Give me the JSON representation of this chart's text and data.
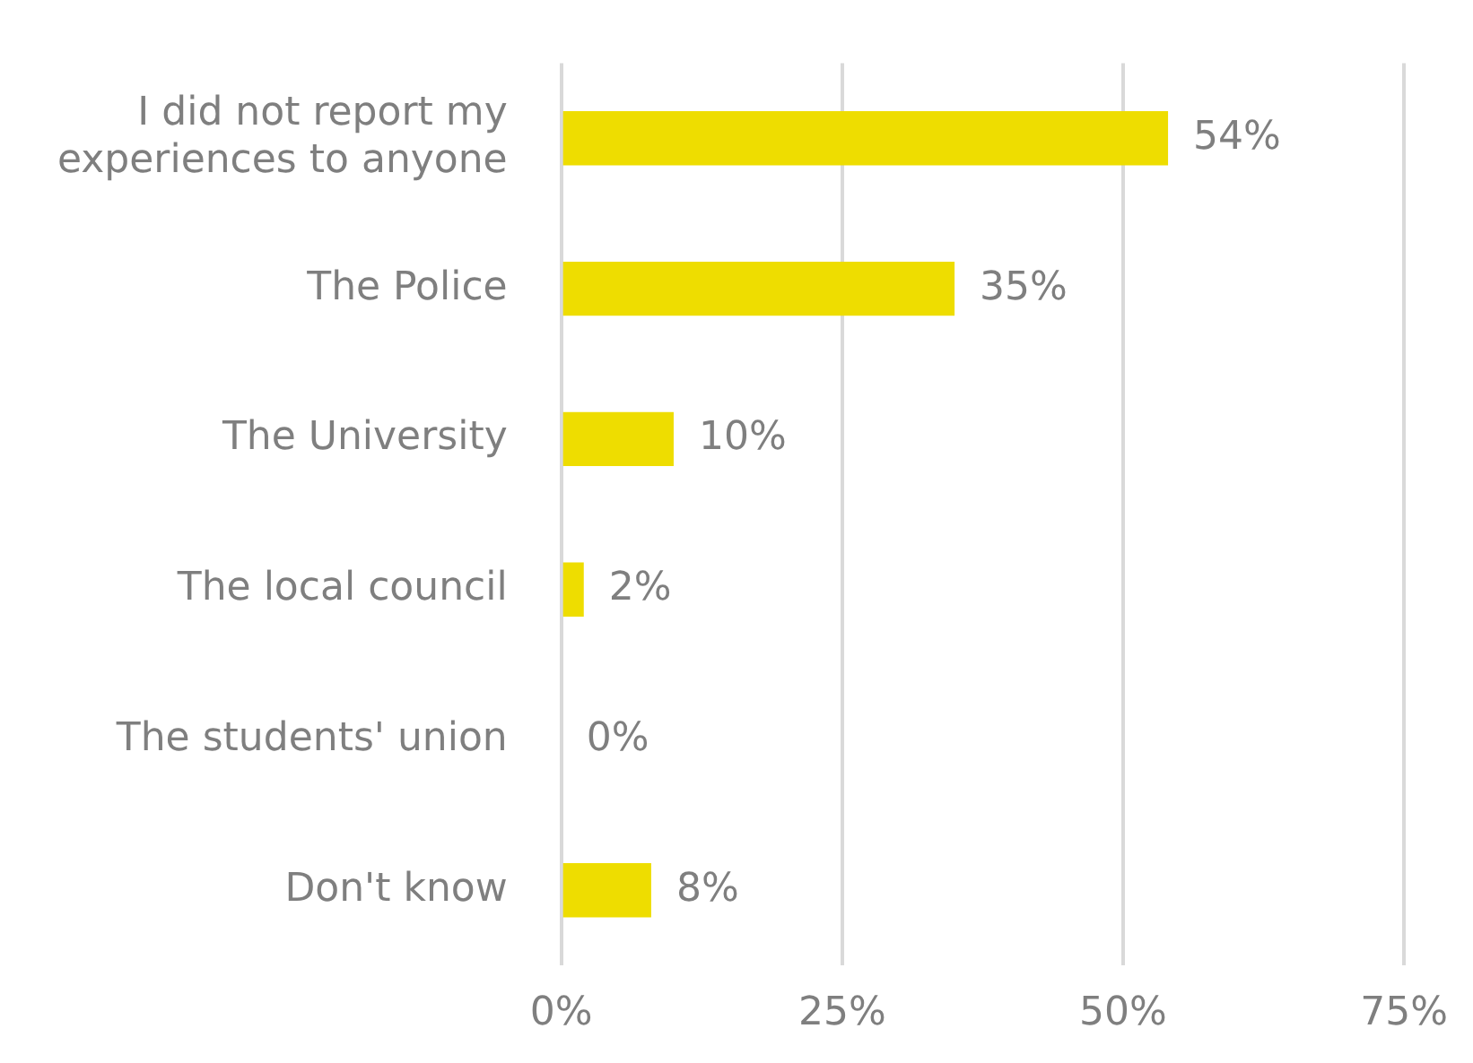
{
  "chart_data": {
    "type": "bar",
    "orientation": "horizontal",
    "categories": [
      "I did not report my experiences to anyone",
      "The Police",
      "The University",
      "The local council",
      "The students' union",
      "Don't know"
    ],
    "values": [
      54,
      35,
      10,
      2,
      0,
      8
    ],
    "value_labels": [
      "54%",
      "35%",
      "10%",
      "2%",
      "0%",
      "8%"
    ],
    "color": "#eedd00",
    "xlim": [
      0,
      75
    ],
    "xticks": [
      {
        "value": 0,
        "label": "0%"
      },
      {
        "value": 25,
        "label": "25%"
      },
      {
        "value": 50,
        "label": "50%"
      },
      {
        "value": 75,
        "label": "75%"
      }
    ],
    "grid": "x",
    "legend": false
  }
}
